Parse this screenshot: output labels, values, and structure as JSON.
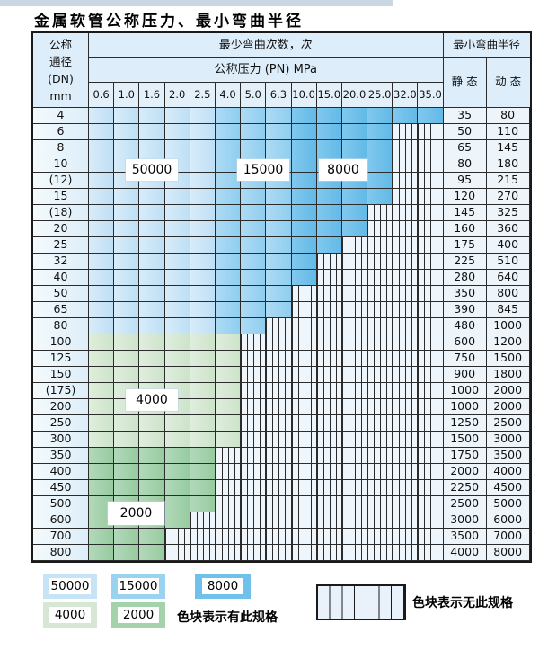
{
  "title": "金属软管公称压力、最小弯曲半径",
  "table": {
    "dn_header_lines": [
      "公称",
      "通径",
      "(DN)",
      "mm"
    ],
    "bend_cycles_header": "最少弯曲次数，次",
    "pressure_header": "公称压力 (PN) MPa",
    "radius_header": "最小弯曲半径",
    "static_header": "静 态",
    "dynamic_header": "动 态",
    "pressure_columns": [
      "0.6",
      "1.0",
      "1.6",
      "2.0",
      "2.5",
      "4.0",
      "5.0",
      "6.3",
      "10.0",
      "15.0",
      "20.0",
      "25.0",
      "32.0",
      "35.0"
    ],
    "rows": [
      {
        "dn": "4",
        "colored": 14,
        "zone": "blue",
        "static": "35",
        "dyn": "80"
      },
      {
        "dn": "6",
        "colored": 12,
        "zone": "blue",
        "static": "50",
        "dyn": "110"
      },
      {
        "dn": "8",
        "colored": 12,
        "zone": "blue",
        "static": "65",
        "dyn": "145"
      },
      {
        "dn": "10",
        "colored": 12,
        "zone": "blue",
        "static": "80",
        "dyn": "180"
      },
      {
        "dn": "(12)",
        "colored": 12,
        "zone": "blue",
        "static": "95",
        "dyn": "215"
      },
      {
        "dn": "15",
        "colored": 12,
        "zone": "blue",
        "static": "120",
        "dyn": "270"
      },
      {
        "dn": "(18)",
        "colored": 11,
        "zone": "blue",
        "static": "145",
        "dyn": "325"
      },
      {
        "dn": "20",
        "colored": 11,
        "zone": "blue",
        "static": "160",
        "dyn": "360"
      },
      {
        "dn": "25",
        "colored": 10,
        "zone": "blue",
        "static": "175",
        "dyn": "400"
      },
      {
        "dn": "32",
        "colored": 9,
        "zone": "blue",
        "static": "225",
        "dyn": "510"
      },
      {
        "dn": "40",
        "colored": 9,
        "zone": "blue",
        "static": "280",
        "dyn": "640"
      },
      {
        "dn": "50",
        "colored": 8,
        "zone": "blue",
        "static": "350",
        "dyn": "800"
      },
      {
        "dn": "65",
        "colored": 8,
        "zone": "blue",
        "static": "390",
        "dyn": "845"
      },
      {
        "dn": "80",
        "colored": 7,
        "zone": "blue",
        "static": "480",
        "dyn": "1000"
      },
      {
        "dn": "100",
        "colored": 6,
        "zone": "green4000",
        "static": "600",
        "dyn": "1200"
      },
      {
        "dn": "125",
        "colored": 6,
        "zone": "green4000",
        "static": "750",
        "dyn": "1500"
      },
      {
        "dn": "150",
        "colored": 6,
        "zone": "green4000",
        "static": "900",
        "dyn": "1800"
      },
      {
        "dn": "(175)",
        "colored": 6,
        "zone": "green4000",
        "static": "1000",
        "dyn": "2000"
      },
      {
        "dn": "200",
        "colored": 6,
        "zone": "green4000",
        "static": "1000",
        "dyn": "2000"
      },
      {
        "dn": "250",
        "colored": 6,
        "zone": "green4000",
        "static": "1250",
        "dyn": "2500"
      },
      {
        "dn": "300",
        "colored": 6,
        "zone": "green4000",
        "static": "1500",
        "dyn": "3000"
      },
      {
        "dn": "350",
        "colored": 5,
        "zone": "green2000",
        "static": "1750",
        "dyn": "3500"
      },
      {
        "dn": "400",
        "colored": 5,
        "zone": "green2000",
        "static": "2000",
        "dyn": "4000"
      },
      {
        "dn": "450",
        "colored": 5,
        "zone": "green2000",
        "static": "2250",
        "dyn": "4500"
      },
      {
        "dn": "500",
        "colored": 5,
        "zone": "green2000",
        "static": "2500",
        "dyn": "5000"
      },
      {
        "dn": "600",
        "colored": 4,
        "zone": "green2000",
        "static": "3000",
        "dyn": "6000"
      },
      {
        "dn": "700",
        "colored": 3,
        "zone": "green2000",
        "static": "3500",
        "dyn": "7000"
      },
      {
        "dn": "800",
        "colored": 3,
        "zone": "green2000",
        "static": "4000",
        "dyn": "8000"
      }
    ]
  },
  "region_labels": [
    "50000",
    "15000",
    "8000",
    "4000",
    "2000"
  ],
  "legend": {
    "swatches": [
      {
        "label": "50000",
        "color": "#c7e3f6"
      },
      {
        "label": "15000",
        "color": "#9bd2f0"
      },
      {
        "label": "8000",
        "color": "#6fc0ea"
      },
      {
        "label": "4000",
        "color": "#d6e8d3"
      },
      {
        "label": "2000",
        "color": "#a3d2ab"
      }
    ],
    "has_spec_text": "色块表示有此规格",
    "no_spec_text": "色块表示无此规格"
  },
  "colors": {
    "cycles_50000": "#c7e3f6",
    "cycles_15000": "#9bd2f0",
    "cycles_8000": "#6fc0ea",
    "cycles_4000": "#d6e8d3",
    "cycles_2000": "#a3d2ab",
    "no_spec_fill": "#eef5fb",
    "grid_line": "#2b2b2b",
    "header_fill": "#ddedf9"
  }
}
